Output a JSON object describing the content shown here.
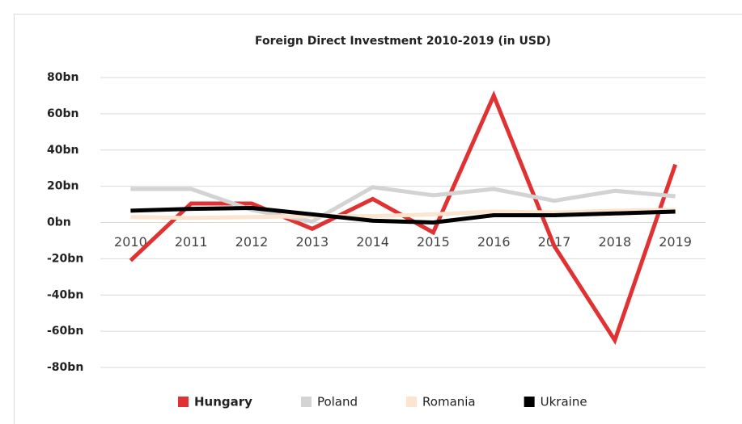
{
  "chart_data": {
    "type": "line",
    "title": "Foreign Direct Investment 2010-2019 (in USD)",
    "categories": [
      "2010",
      "2011",
      "2012",
      "2013",
      "2014",
      "2015",
      "2016",
      "2017",
      "2018",
      "2019"
    ],
    "series": [
      {
        "name": "Hungary",
        "color": "#e03232",
        "values": [
          -21,
          10.5,
          10.5,
          -3.5,
          13,
          -5.5,
          70,
          -13,
          -65,
          32
        ]
      },
      {
        "name": "Poland",
        "color": "#d3d3d3",
        "values": [
          18.5,
          18.5,
          7,
          0.5,
          19.5,
          15,
          18.5,
          12,
          17.5,
          14.5
        ]
      },
      {
        "name": "Romania",
        "color": "#fde4ce",
        "values": [
          3,
          2.5,
          3,
          3.5,
          3.5,
          4.5,
          6,
          5.5,
          6.5,
          7
        ]
      },
      {
        "name": "Ukraine",
        "color": "#000000",
        "values": [
          6.5,
          7.5,
          8,
          4.5,
          1,
          0,
          4,
          4,
          5,
          6
        ]
      }
    ],
    "ylim": [
      -80,
      80
    ],
    "yticks": [
      {
        "value": -80,
        "label": "-80bn"
      },
      {
        "value": -60,
        "label": "-60bn"
      },
      {
        "value": -40,
        "label": "-40bn"
      },
      {
        "value": -20,
        "label": "-20bn"
      },
      {
        "value": 0,
        "label": "0bn"
      },
      {
        "value": 20,
        "label": "20bn"
      },
      {
        "value": 40,
        "label": "40bn"
      },
      {
        "value": 60,
        "label": "60bn"
      },
      {
        "value": 80,
        "label": "80bn"
      }
    ],
    "grid": true,
    "legend": "bottom"
  }
}
